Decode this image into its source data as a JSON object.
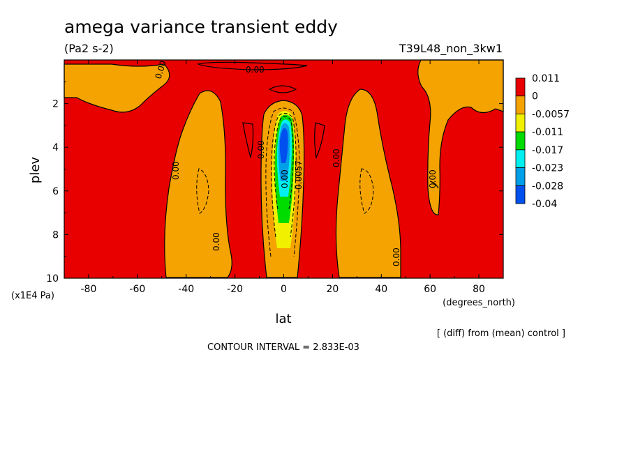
{
  "chart_data": {
    "type": "heatmap",
    "title": "amega variance transient eddy",
    "units": "(Pa2 s-2)",
    "run_label": "T39L48_non_3kw1",
    "xlabel": "lat",
    "ylabel": "plev",
    "x_units": "(degrees_north)",
    "y_units": "(x1E4 Pa)",
    "xlim": [
      -90,
      90
    ],
    "ylim": [
      10,
      0
    ],
    "x_ticks": [
      "-80",
      "-60",
      "-40",
      "-20",
      "0",
      "20",
      "40",
      "60",
      "80"
    ],
    "y_ticks": [
      "2",
      "4",
      "6",
      "8",
      "10"
    ],
    "diff_note": "[ (diff) from (mean) control ]",
    "contour_interval": "CONTOUR INTERVAL = 2.833E-03",
    "colorbar": {
      "labels": [
        "0.011",
        "0",
        "-0.0057",
        "-0.011",
        "-0.017",
        "-0.023",
        "-0.028",
        "-0.04"
      ],
      "colors": [
        "#e80000",
        "#f4a300",
        "#f0f000",
        "#00dc00",
        "#00f0f0",
        "#00a0e8",
        "#0050f0"
      ]
    },
    "contour_labels": [
      "0.00",
      "0.00",
      "0.00",
      "0.00",
      "0.00",
      "0.00",
      "0.00",
      "0.00",
      "0.0057",
      "0.00"
    ],
    "orange_regions": [
      {
        "name": "sh-polar-upper",
        "lat_range": [
          -90,
          -50
        ],
        "plev_range": [
          0.2,
          2.5
        ]
      },
      {
        "name": "sh-midlat",
        "lat_range": [
          -52,
          -22
        ],
        "plev_range": [
          1.5,
          9.9
        ]
      },
      {
        "name": "equatorial",
        "lat_range": [
          -10,
          12
        ],
        "plev_range": [
          1.6,
          10
        ]
      },
      {
        "name": "nh-midlat",
        "lat_range": [
          22,
          47
        ],
        "plev_range": [
          1.4,
          9.9
        ]
      },
      {
        "name": "nh-polar-upper",
        "lat_range": [
          55,
          90
        ],
        "plev_range": [
          0.2,
          6.5
        ]
      }
    ],
    "minimum": {
      "lat": 0,
      "plev": 4,
      "value": -0.04
    }
  }
}
